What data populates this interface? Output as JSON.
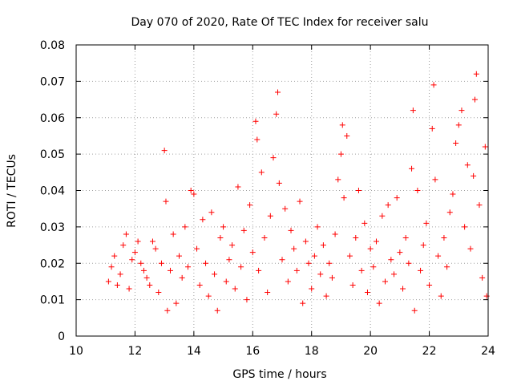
{
  "chart_data": {
    "type": "scatter",
    "title": "Day 070 of 2020, Rate Of TEC Index for receiver salu",
    "xlabel": "GPS time / hours",
    "ylabel": "ROTI / TECUs",
    "xlim": [
      10,
      24
    ],
    "ylim": [
      0,
      0.08
    ],
    "xticks": [
      10,
      12,
      14,
      16,
      18,
      20,
      22,
      24
    ],
    "yticks": [
      0,
      0.01,
      0.02,
      0.03,
      0.04,
      0.05,
      0.06,
      0.07,
      0.08
    ],
    "xtick_labels": [
      "10",
      "12",
      "14",
      "16",
      "18",
      "20",
      "22",
      "24"
    ],
    "ytick_labels": [
      "0",
      "0.01",
      "0.02",
      "0.03",
      "0.04",
      "0.05",
      "0.06",
      "0.07",
      "0.08"
    ],
    "grid": true,
    "marker": "+",
    "color": "#ff0000",
    "series": [
      {
        "name": "ROTI",
        "points": [
          [
            11.1,
            0.015
          ],
          [
            11.2,
            0.019
          ],
          [
            11.3,
            0.022
          ],
          [
            11.4,
            0.014
          ],
          [
            11.5,
            0.017
          ],
          [
            11.6,
            0.025
          ],
          [
            11.7,
            0.028
          ],
          [
            11.8,
            0.013
          ],
          [
            11.9,
            0.021
          ],
          [
            12.0,
            0.023
          ],
          [
            12.1,
            0.026
          ],
          [
            12.2,
            0.02
          ],
          [
            12.3,
            0.018
          ],
          [
            12.4,
            0.016
          ],
          [
            12.5,
            0.014
          ],
          [
            12.6,
            0.026
          ],
          [
            12.7,
            0.024
          ],
          [
            12.8,
            0.012
          ],
          [
            12.9,
            0.02
          ],
          [
            13.0,
            0.051
          ],
          [
            13.05,
            0.037
          ],
          [
            13.1,
            0.007
          ],
          [
            13.2,
            0.018
          ],
          [
            13.3,
            0.028
          ],
          [
            13.4,
            0.009
          ],
          [
            13.5,
            0.022
          ],
          [
            13.6,
            0.016
          ],
          [
            13.7,
            0.03
          ],
          [
            13.8,
            0.019
          ],
          [
            13.9,
            0.04
          ],
          [
            14.0,
            0.039
          ],
          [
            14.1,
            0.024
          ],
          [
            14.2,
            0.014
          ],
          [
            14.3,
            0.032
          ],
          [
            14.4,
            0.02
          ],
          [
            14.5,
            0.011
          ],
          [
            14.6,
            0.034
          ],
          [
            14.7,
            0.017
          ],
          [
            14.8,
            0.007
          ],
          [
            14.9,
            0.027
          ],
          [
            15.0,
            0.03
          ],
          [
            15.1,
            0.015
          ],
          [
            15.2,
            0.021
          ],
          [
            15.3,
            0.025
          ],
          [
            15.4,
            0.013
          ],
          [
            15.5,
            0.041
          ],
          [
            15.6,
            0.019
          ],
          [
            15.7,
            0.029
          ],
          [
            15.8,
            0.01
          ],
          [
            15.9,
            0.036
          ],
          [
            16.0,
            0.023
          ],
          [
            16.1,
            0.059
          ],
          [
            16.15,
            0.054
          ],
          [
            16.2,
            0.018
          ],
          [
            16.3,
            0.045
          ],
          [
            16.4,
            0.027
          ],
          [
            16.5,
            0.012
          ],
          [
            16.6,
            0.033
          ],
          [
            16.7,
            0.049
          ],
          [
            16.8,
            0.061
          ],
          [
            16.85,
            0.067
          ],
          [
            16.9,
            0.042
          ],
          [
            17.0,
            0.021
          ],
          [
            17.1,
            0.035
          ],
          [
            17.2,
            0.015
          ],
          [
            17.3,
            0.029
          ],
          [
            17.4,
            0.024
          ],
          [
            17.5,
            0.018
          ],
          [
            17.6,
            0.037
          ],
          [
            17.7,
            0.009
          ],
          [
            17.8,
            0.026
          ],
          [
            17.9,
            0.02
          ],
          [
            18.0,
            0.013
          ],
          [
            18.1,
            0.022
          ],
          [
            18.2,
            0.03
          ],
          [
            18.3,
            0.017
          ],
          [
            18.4,
            0.025
          ],
          [
            18.5,
            0.011
          ],
          [
            18.6,
            0.02
          ],
          [
            18.7,
            0.016
          ],
          [
            18.8,
            0.028
          ],
          [
            18.9,
            0.043
          ],
          [
            19.0,
            0.05
          ],
          [
            19.05,
            0.058
          ],
          [
            19.1,
            0.038
          ],
          [
            19.2,
            0.055
          ],
          [
            19.3,
            0.022
          ],
          [
            19.4,
            0.014
          ],
          [
            19.5,
            0.027
          ],
          [
            19.6,
            0.04
          ],
          [
            19.7,
            0.018
          ],
          [
            19.8,
            0.031
          ],
          [
            19.9,
            0.012
          ],
          [
            20.0,
            0.024
          ],
          [
            20.1,
            0.019
          ],
          [
            20.2,
            0.026
          ],
          [
            20.3,
            0.009
          ],
          [
            20.4,
            0.033
          ],
          [
            20.5,
            0.015
          ],
          [
            20.6,
            0.036
          ],
          [
            20.7,
            0.021
          ],
          [
            20.8,
            0.017
          ],
          [
            20.9,
            0.038
          ],
          [
            21.0,
            0.023
          ],
          [
            21.1,
            0.013
          ],
          [
            21.2,
            0.027
          ],
          [
            21.3,
            0.02
          ],
          [
            21.4,
            0.046
          ],
          [
            21.45,
            0.062
          ],
          [
            21.5,
            0.007
          ],
          [
            21.6,
            0.04
          ],
          [
            21.7,
            0.018
          ],
          [
            21.8,
            0.025
          ],
          [
            21.9,
            0.031
          ],
          [
            22.0,
            0.014
          ],
          [
            22.1,
            0.057
          ],
          [
            22.15,
            0.069
          ],
          [
            22.2,
            0.043
          ],
          [
            22.3,
            0.022
          ],
          [
            22.4,
            0.011
          ],
          [
            22.5,
            0.027
          ],
          [
            22.6,
            0.019
          ],
          [
            22.7,
            0.034
          ],
          [
            22.8,
            0.039
          ],
          [
            22.9,
            0.053
          ],
          [
            23.0,
            0.058
          ],
          [
            23.1,
            0.062
          ],
          [
            23.2,
            0.03
          ],
          [
            23.3,
            0.047
          ],
          [
            23.4,
            0.024
          ],
          [
            23.5,
            0.044
          ],
          [
            23.55,
            0.065
          ],
          [
            23.6,
            0.072
          ],
          [
            23.7,
            0.036
          ],
          [
            23.8,
            0.016
          ],
          [
            23.9,
            0.052
          ],
          [
            23.95,
            0.011
          ]
        ]
      }
    ]
  }
}
